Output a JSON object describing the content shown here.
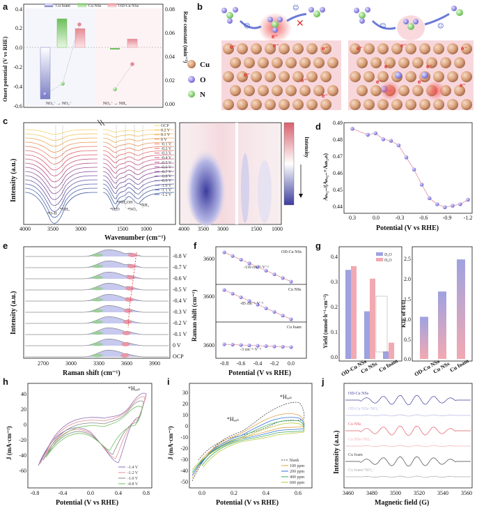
{
  "colors": {
    "blue": "#7b7fc4",
    "pink": "#e58b95",
    "green": "#6cbf5a",
    "copper": "#d9a07a",
    "dark": "#222222"
  },
  "panels": {
    "a": {
      "label": "a",
      "legend": [
        "Cu foam",
        "Cu NSs",
        "OD-Cu NSs"
      ],
      "ylabel_left": "Onset potential (V vs RHE)",
      "ylabel_right": "Rate constant (min⁻¹)",
      "left_ticks": [
        "0.4",
        "0.2",
        "0.0",
        "-0.2",
        "-0.4",
        "-0.6"
      ],
      "right_ticks": [
        "0.08",
        "0.06",
        "0.04",
        "0.02",
        "0.00"
      ],
      "step1": "NO₃⁻ → NO₂⁻",
      "step2": "NO₂⁻ → NH₃",
      "k1": "k₁",
      "k2": "k₂"
    },
    "b": {
      "label": "b",
      "legend": [
        "Cu",
        "O",
        "N"
      ],
      "electron": "e⁻"
    },
    "c": {
      "label": "c",
      "ylabel": "Intensity (a.u.)",
      "xlabel": "Wavenumber (cm⁻¹)",
      "left_xticks": [
        "4000",
        "3500",
        "3000",
        "1500",
        "1000"
      ],
      "right_xticks": [
        "4000",
        "3500",
        "3000",
        "1500",
        "1000"
      ],
      "legend": [
        "OCP",
        "0.2 V",
        "0.1 V",
        "0 V",
        "-0.1 V",
        "-0.2 V",
        "-0.3 V",
        "-0.4 V",
        "-0.5 V",
        "-0.6 V",
        "-0.7 V",
        "-0.8 V",
        "-0.9 V",
        "-1.0 V",
        "-1.1 V",
        "-1.2 V"
      ],
      "annotations": [
        "*O-H",
        "*NH₃",
        "*H₂O",
        "*NH₂OH",
        "*NO₂",
        "*NH₃"
      ],
      "colorbar_label": "Intensity"
    },
    "d": {
      "label": "d",
      "ylabel": "Aₙₒ₂₋/(Aₙₒ₂₋+Aₙₕ₂ₒₕ)",
      "xlabel": "Potential (V vs RHE)",
      "yticks": [
        "0.49",
        "0.48",
        "0.47",
        "0.46",
        "0.45",
        "0.44"
      ],
      "xticks": [
        "0.3",
        "0.0",
        "-0.3",
        "-0.6",
        "-0.9",
        "-1.2"
      ]
    },
    "e": {
      "label": "e",
      "ylabel": "Intensity (a.u.)",
      "xlabel": "Raman shift (cm⁻¹)",
      "xticks": [
        "2700",
        "3000",
        "3300",
        "3600",
        "3900"
      ],
      "traces": [
        "-0.8 V",
        "-0.7 V",
        "-0.6 V",
        "-0.5 V",
        "-0.4 V",
        "-0.3 V",
        "-0.2 V",
        "-0.1 V",
        "0 V",
        "OCP"
      ]
    },
    "f": {
      "label": "f",
      "ylabel": "Raman shift (cm⁻¹)",
      "xlabel": "Potential (V vs RHE)",
      "xticks": [
        "-0.8",
        "-0.6",
        "-0.4",
        "-0.2",
        "0.0"
      ],
      "subpanels": [
        {
          "name": "OD-Cu NSs",
          "slope": "-110 cm⁻¹·V⁻¹",
          "ytick": "3600"
        },
        {
          "name": "Cu NSs",
          "slope": "-85 cm⁻¹·V⁻¹",
          "ytick": "3600"
        },
        {
          "name": "Cu foam",
          "slope": "-3 cm⁻¹·V⁻¹",
          "ytick": "3600"
        }
      ]
    },
    "g": {
      "label": "g",
      "ylabel": "Yield (mmol·h⁻¹·cm⁻²)",
      "ylabel2": "KIE of H/D",
      "legend": [
        "D₂O",
        "H₂O"
      ],
      "categories": [
        "OD-Cu NSs",
        "Cu NSs",
        "Cu foam"
      ],
      "yticks": [
        "0.4",
        "0.3",
        "0.2",
        "0.1",
        "0.0"
      ],
      "yticks2": [
        "2.5",
        "2.0",
        "1.5",
        "1.0",
        "0.5",
        "0.0"
      ]
    },
    "h": {
      "label": "h",
      "ylabel": "J (mA·cm⁻²)",
      "xlabel": "Potential (V vs RHE)",
      "xticks": [
        "-0.8",
        "-0.4",
        "0.0",
        "0.4",
        "0.8"
      ],
      "yticks": [
        "40",
        "20",
        "0",
        "-20",
        "-40",
        "-60"
      ],
      "legend": [
        "-1.4 V",
        "-1.2 V",
        "-1.0 V",
        "-0.8 V"
      ],
      "annot": "*Hₐₔₛ"
    },
    "i": {
      "label": "i",
      "ylabel": "J (mA·cm⁻²)",
      "xlabel": "Potential (V vs RHE)",
      "xticks": [
        "0.0",
        "0.2",
        "0.4",
        "0.6"
      ],
      "yticks": [
        "30",
        "20",
        "10",
        "0",
        "-10",
        "-20",
        "-30",
        "-40",
        "-50"
      ],
      "legend": [
        "blank",
        "100 ppm",
        "200 ppm",
        "400 ppm",
        "600 ppm"
      ],
      "annot1": "*Hₐₔₛ",
      "annot2": "*Hₐₔₛ"
    },
    "j": {
      "label": "j",
      "ylabel": "Intensity (a.u.)",
      "xlabel": "Magnetic field (G)",
      "xticks": [
        "3460",
        "3480",
        "3500",
        "3520",
        "3540",
        "3560"
      ],
      "traces": [
        "OD-Cu NSs",
        "OD-Cu NSs+NO₃⁻",
        "Cu NSs",
        "Cu NSs+NO₃⁻",
        "Cu foam",
        "Cu foam+NO₃⁻"
      ]
    }
  },
  "chart_data": [
    {
      "panel": "a",
      "type": "bar",
      "categories": [
        "Cu foam",
        "Cu NSs",
        "OD-Cu NSs"
      ],
      "series": [
        {
          "name": "Onset potential NO3- to NO2-",
          "values": [
            -0.48,
            0.2,
            0.13
          ]
        },
        {
          "name": "Onset potential NO2- to NH3",
          "values": [
            0.0,
            0.01,
            0.06
          ]
        }
      ],
      "ylim": [
        -0.6,
        0.4
      ]
    },
    {
      "panel": "d",
      "type": "line",
      "x": [
        0.3,
        0.1,
        0.0,
        -0.1,
        -0.2,
        -0.3,
        -0.4,
        -0.5,
        -0.6,
        -0.7,
        -0.8,
        -0.9,
        -1.0,
        -1.1,
        -1.2
      ],
      "values": [
        0.493,
        0.489,
        0.49,
        0.486,
        0.485,
        0.482,
        0.474,
        0.466,
        0.456,
        0.447,
        0.443,
        0.441,
        0.442,
        0.443,
        0.446
      ],
      "xlim": [
        0.3,
        -1.2
      ],
      "ylim": [
        0.437,
        0.497
      ]
    },
    {
      "panel": "f",
      "type": "scatter",
      "x": [
        -0.8,
        -0.7,
        -0.6,
        -0.5,
        -0.4,
        -0.3,
        -0.2,
        -0.1,
        0.0
      ],
      "series": [
        {
          "name": "OD-Cu NSs",
          "slope": -110
        },
        {
          "name": "Cu NSs",
          "slope": -85
        },
        {
          "name": "Cu foam",
          "slope": -3
        }
      ]
    },
    {
      "panel": "g",
      "type": "bar",
      "categories": [
        "OD-Cu NSs",
        "Cu NSs",
        "Cu foam"
      ],
      "series": [
        {
          "name": "D2O",
          "values": [
            0.355,
            0.19,
            0.03
          ]
        },
        {
          "name": "H2O",
          "values": [
            0.37,
            0.32,
            0.065
          ]
        }
      ],
      "ylim": [
        0,
        0.45
      ]
    },
    {
      "panel": "g2",
      "type": "bar",
      "categories": [
        "OD-Cu NSs",
        "Cu NSs",
        "Cu foam"
      ],
      "values": [
        1.05,
        1.68,
        2.48
      ],
      "ylim": [
        0,
        2.8
      ]
    }
  ]
}
